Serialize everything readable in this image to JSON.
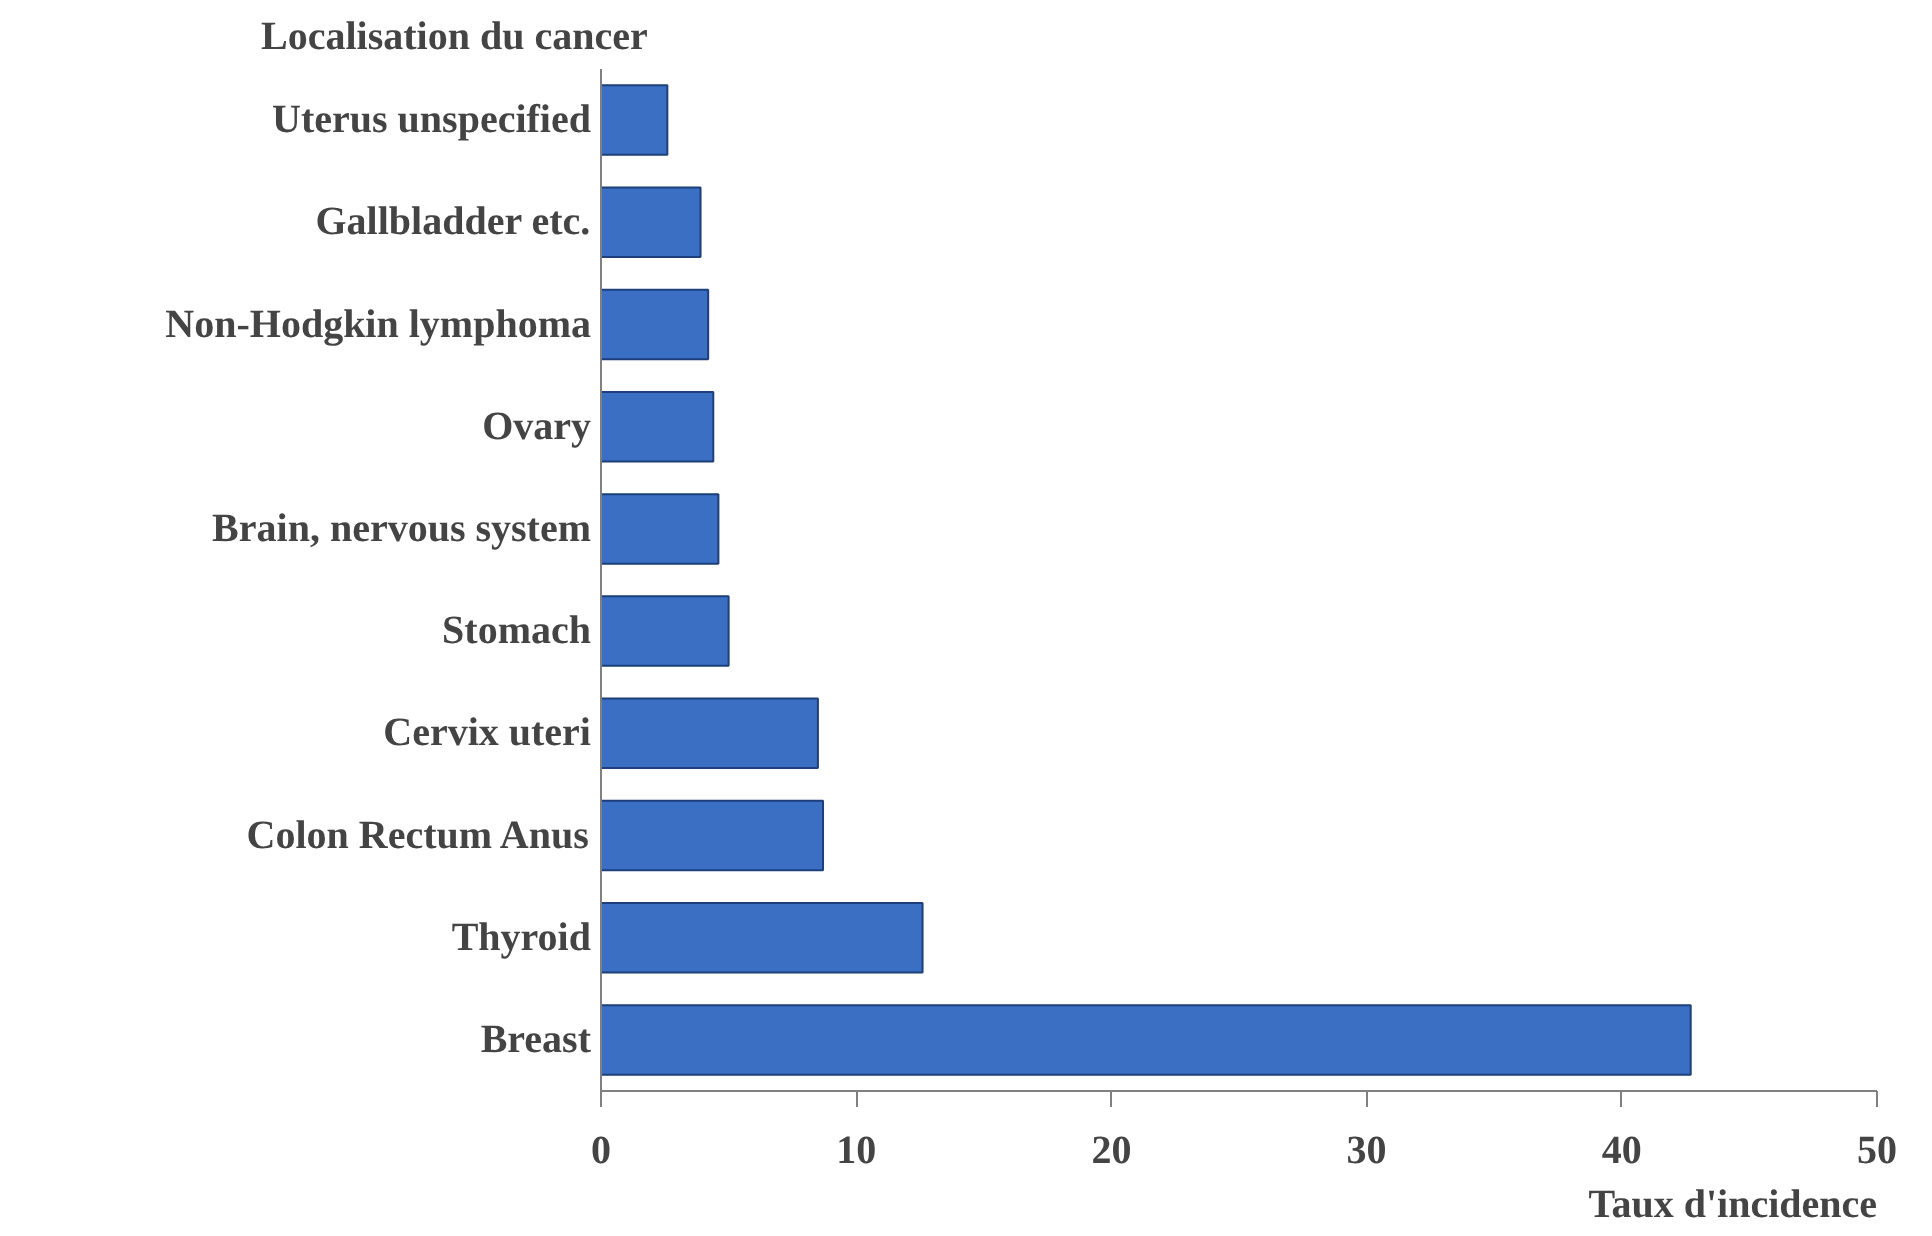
{
  "chart_data": {
    "type": "bar",
    "orientation": "horizontal",
    "ylabel": "Localisation du cancer",
    "xlabel": "Taux d'incidence",
    "categories": [
      "Uterus unspecified",
      "Gallbladder etc.",
      "Non-Hodgkin lymphoma",
      "Ovary",
      "Brain, nervous system",
      "Stomach",
      "Cervix uteri",
      "Colon Rectum Anus",
      "Thyroid",
      "Breast"
    ],
    "values": [
      2.6,
      3.9,
      4.2,
      4.4,
      4.6,
      5.0,
      8.5,
      8.7,
      12.6,
      42.7
    ],
    "color": "#3a6fc4",
    "xlim": [
      0,
      50
    ],
    "xticks": [
      0,
      10,
      20,
      30,
      40,
      50
    ],
    "grid": false
  }
}
